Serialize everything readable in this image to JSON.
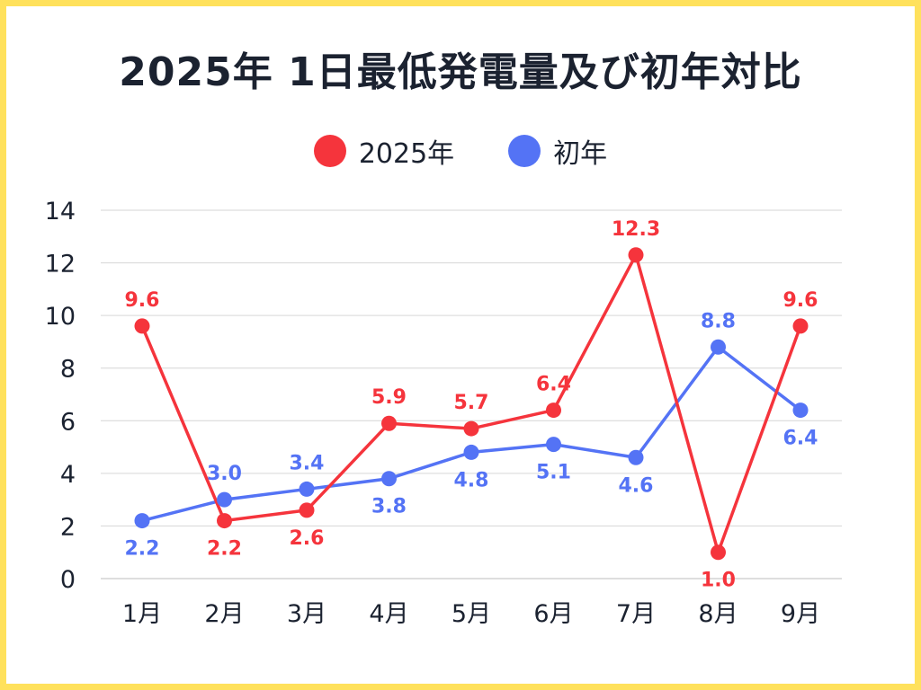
{
  "chart_data": {
    "type": "line",
    "title": "2025年 1日最低発電量及び初年対比",
    "categories": [
      "1月",
      "2月",
      "3月",
      "4月",
      "5月",
      "6月",
      "7月",
      "8月",
      "9月"
    ],
    "series": [
      {
        "name": "2025年",
        "color": "#f5343c",
        "values": [
          9.6,
          2.2,
          2.6,
          5.9,
          5.7,
          6.4,
          12.3,
          1.0,
          9.6
        ],
        "labels": [
          "9.6",
          "2.2",
          "2.6",
          "5.9",
          "5.7",
          "6.4",
          "12.3",
          "1.0",
          "9.6"
        ],
        "label_positions": [
          "above",
          "below",
          "below",
          "above",
          "above",
          "above",
          "above",
          "below",
          "above"
        ]
      },
      {
        "name": "初年",
        "color": "#5473f5",
        "values": [
          2.2,
          3.0,
          3.4,
          3.8,
          4.8,
          5.1,
          4.6,
          8.8,
          6.4
        ],
        "labels": [
          "2.2",
          "3.0",
          "3.4",
          "3.8",
          "4.8",
          "5.1",
          "4.6",
          "8.8",
          "6.4"
        ],
        "label_positions": [
          "below",
          "above",
          "above",
          "below",
          "below",
          "below",
          "below",
          "above",
          "below"
        ]
      }
    ],
    "ylim": [
      0,
      14
    ],
    "yticks": [
      "0",
      "2",
      "4",
      "6",
      "8",
      "10",
      "12",
      "14"
    ],
    "ytick_values": [
      0,
      2,
      4,
      6,
      8,
      10,
      12,
      14
    ],
    "xlabel": "",
    "ylabel": "",
    "grid": true,
    "legend": "top-center"
  }
}
